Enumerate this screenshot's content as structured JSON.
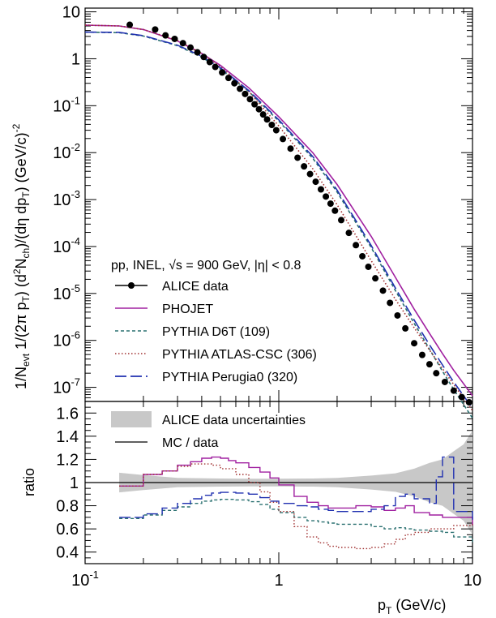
{
  "chart_data": [
    {
      "type": "line",
      "panel": "spectrum",
      "ylabel": "1/N_evt 1/(2π p_T) (d²N_ch)/(dη dp_T) (GeV/c)^-2",
      "yscale": "log",
      "xscale": "log",
      "xlim": [
        0.1,
        10
      ],
      "ylim": [
        5e-08,
        12
      ],
      "y_tick_labels": [
        "10^-7",
        "10^-6",
        "10^-5",
        "10^-4",
        "10^-3",
        "10^-2",
        "10^-1",
        "1",
        "10"
      ],
      "annotation": "pp, INEL, √s = 900 GeV, |η| < 0.8",
      "series": [
        {
          "name": "ALICE data",
          "style": "markers",
          "color": "#000000",
          "x": [
            0.17,
            0.23,
            0.26,
            0.29,
            0.32,
            0.35,
            0.38,
            0.41,
            0.44,
            0.47,
            0.51,
            0.55,
            0.59,
            0.63,
            0.67,
            0.71,
            0.75,
            0.79,
            0.83,
            0.87,
            0.92,
            0.97,
            1.05,
            1.15,
            1.25,
            1.35,
            1.45,
            1.55,
            1.65,
            1.75,
            1.85,
            1.95,
            2.1,
            2.3,
            2.5,
            2.7,
            2.9,
            3.15,
            3.45,
            3.75,
            4.1,
            4.5,
            5.0,
            5.5,
            6.0,
            6.5,
            7.2,
            8.0,
            8.8,
            9.6
          ],
          "y": [
            5.3,
            4.2,
            3.15,
            2.65,
            2.15,
            1.73,
            1.37,
            1.09,
            0.85,
            0.67,
            0.51,
            0.39,
            0.3,
            0.23,
            0.178,
            0.138,
            0.107,
            0.084,
            0.065,
            0.051,
            0.039,
            0.03,
            0.0195,
            0.0122,
            0.0078,
            0.0051,
            0.0035,
            0.0024,
            0.00165,
            0.00116,
            0.00082,
            0.00058,
            0.000365,
            0.000195,
            0.000107,
            6.2e-05,
            3.7e-05,
            2.1e-05,
            1.15e-05,
            6.3e-06,
            3.4e-06,
            1.8e-06,
            8.7e-07,
            4.9e-07,
            3.1e-07,
            2e-07,
            1.3e-07,
            8.5e-08,
            6.2e-08,
            4.8e-08
          ]
        },
        {
          "name": "PHOJET",
          "style": "solid",
          "color": "#a020a0",
          "x": [
            0.1,
            0.15,
            0.2,
            0.3,
            0.4,
            0.5,
            0.7,
            1.0,
            1.5,
            2.0,
            3.0,
            4.0,
            5.0,
            6.0,
            7.0,
            8.0,
            10.0
          ],
          "y": [
            5.2,
            5.0,
            4.2,
            2.4,
            1.3,
            0.72,
            0.24,
            0.058,
            0.0099,
            0.0021,
            0.000165,
            2.2e-05,
            4.6e-06,
            1.4e-06,
            5.2e-07,
            2.3e-07,
            6.6e-08
          ]
        },
        {
          "name": "PYTHIA D6T (109)",
          "style": "dashed-short",
          "color": "#2a7070",
          "x": [
            0.1,
            0.15,
            0.2,
            0.3,
            0.4,
            0.5,
            0.7,
            1.0,
            1.5,
            2.0,
            3.0,
            4.0,
            5.0,
            6.0,
            7.0,
            8.0,
            10.0
          ],
          "y": [
            3.7,
            3.6,
            3.05,
            1.9,
            1.08,
            0.6,
            0.2,
            0.047,
            0.0075,
            0.00145,
            9.5e-05,
            1.15e-05,
            2.3e-06,
            6.5e-07,
            2.2e-07,
            9e-08,
            2.2e-08
          ]
        },
        {
          "name": "PYTHIA ATLAS-CSC (306)",
          "style": "dotted",
          "color": "#a03030",
          "x": [
            0.1,
            0.15,
            0.2,
            0.3,
            0.4,
            0.5,
            0.7,
            1.0,
            1.5,
            2.0,
            3.0,
            4.0,
            5.0,
            6.0,
            7.0,
            8.0,
            10.0
          ],
          "y": [
            5.2,
            5.0,
            4.2,
            2.45,
            1.3,
            0.68,
            0.2,
            0.037,
            0.0045,
            0.00078,
            5e-05,
            7.5e-06,
            1.85e-06,
            6.2e-07,
            2.5e-07,
            1.15e-07,
            3.2e-08
          ]
        },
        {
          "name": "PYTHIA Perugia0 (320)",
          "style": "dashed-long",
          "color": "#2030b0",
          "x": [
            0.1,
            0.15,
            0.2,
            0.3,
            0.4,
            0.5,
            0.7,
            1.0,
            1.5,
            2.0,
            3.0,
            4.0,
            5.0,
            6.0,
            7.0,
            8.0,
            10.0
          ],
          "y": [
            3.7,
            3.65,
            3.1,
            1.95,
            1.13,
            0.64,
            0.21,
            0.05,
            0.0082,
            0.0016,
            0.000105,
            1.3e-05,
            2.7e-06,
            8e-07,
            3e-07,
            1.3e-07,
            3.6e-08
          ]
        }
      ]
    },
    {
      "type": "line",
      "panel": "ratio",
      "xlabel": "p_T (GeV/c)",
      "ylabel": "ratio",
      "xscale": "log",
      "xlim": [
        0.1,
        10
      ],
      "ylim": [
        0.3,
        1.7
      ],
      "x_tick_labels": [
        "10^-1",
        "1",
        "10"
      ],
      "y_tick_labels": [
        "0.4",
        "0.6",
        "0.8",
        "1",
        "1.2",
        "1.4",
        "1.6"
      ],
      "band": {
        "name": "ALICE data uncertainties",
        "color": "#c8c8c8",
        "x": [
          0.15,
          0.2,
          0.3,
          0.5,
          0.7,
          1.0,
          1.5,
          2.0,
          3.0,
          4.0,
          5.0,
          6.0,
          7.0,
          8.0,
          9.0,
          10.0
        ],
        "half_width": [
          0.085,
          0.065,
          0.04,
          0.035,
          0.033,
          0.033,
          0.035,
          0.04,
          0.06,
          0.08,
          0.12,
          0.17,
          0.2,
          0.27,
          0.33,
          0.45
        ]
      },
      "reference": {
        "name": "MC / data",
        "y": 1.0
      },
      "series": [
        {
          "name": "PHOJET",
          "style": "solid",
          "color": "#a020a0",
          "x": [
            0.15,
            0.2,
            0.25,
            0.3,
            0.35,
            0.4,
            0.45,
            0.5,
            0.55,
            0.6,
            0.7,
            0.8,
            0.9,
            1.0,
            1.2,
            1.4,
            1.6,
            1.8,
            2.0,
            2.5,
            3.0,
            3.5,
            4.0,
            4.5,
            5.0,
            6.0,
            7.0,
            8.0,
            10.0
          ],
          "y": [
            0.97,
            1.07,
            1.1,
            1.15,
            1.18,
            1.21,
            1.22,
            1.21,
            1.19,
            1.17,
            1.13,
            1.09,
            1.04,
            0.98,
            0.88,
            0.83,
            0.8,
            0.78,
            0.78,
            0.8,
            0.79,
            0.76,
            0.78,
            0.8,
            0.74,
            0.72,
            0.7,
            0.7,
            0.63
          ]
        },
        {
          "name": "PYTHIA D6T (109)",
          "style": "dashed-short",
          "color": "#2a7070",
          "x": [
            0.15,
            0.2,
            0.25,
            0.3,
            0.35,
            0.4,
            0.45,
            0.5,
            0.6,
            0.7,
            0.8,
            0.9,
            1.0,
            1.2,
            1.4,
            1.6,
            1.8,
            2.0,
            2.5,
            3.0,
            3.5,
            4.0,
            4.5,
            5.0,
            6.0,
            7.0,
            8.0,
            10.0
          ],
          "y": [
            0.69,
            0.72,
            0.76,
            0.79,
            0.82,
            0.84,
            0.85,
            0.855,
            0.85,
            0.835,
            0.81,
            0.77,
            0.74,
            0.7,
            0.67,
            0.66,
            0.65,
            0.64,
            0.64,
            0.62,
            0.6,
            0.61,
            0.6,
            0.59,
            0.58,
            0.57,
            0.53,
            0.47
          ]
        },
        {
          "name": "PYTHIA ATLAS-CSC (306)",
          "style": "dotted",
          "color": "#a03030",
          "x": [
            0.15,
            0.2,
            0.25,
            0.3,
            0.35,
            0.4,
            0.45,
            0.5,
            0.6,
            0.7,
            0.8,
            0.9,
            1.0,
            1.2,
            1.4,
            1.6,
            1.8,
            2.0,
            2.5,
            3.0,
            3.5,
            4.0,
            4.5,
            5.0,
            6.0,
            7.0,
            8.0,
            10.0
          ],
          "y": [
            0.97,
            1.07,
            1.1,
            1.14,
            1.16,
            1.16,
            1.15,
            1.12,
            1.07,
            1.0,
            0.92,
            0.83,
            0.75,
            0.62,
            0.53,
            0.48,
            0.45,
            0.44,
            0.43,
            0.44,
            0.47,
            0.51,
            0.55,
            0.57,
            0.6,
            0.6,
            0.63,
            0.65
          ]
        },
        {
          "name": "PYTHIA Perugia0 (320)",
          "style": "dashed-long",
          "color": "#2030b0",
          "x": [
            0.15,
            0.2,
            0.25,
            0.3,
            0.35,
            0.4,
            0.45,
            0.5,
            0.6,
            0.7,
            0.8,
            0.9,
            1.0,
            1.2,
            1.4,
            1.6,
            1.8,
            2.0,
            2.5,
            3.0,
            3.5,
            4.0,
            4.5,
            5.0,
            6.0,
            6.5,
            7.0,
            8.0,
            10.0
          ],
          "y": [
            0.7,
            0.73,
            0.78,
            0.82,
            0.86,
            0.89,
            0.91,
            0.915,
            0.91,
            0.9,
            0.87,
            0.84,
            0.82,
            0.8,
            0.79,
            0.77,
            0.76,
            0.75,
            0.75,
            0.77,
            0.8,
            0.88,
            0.9,
            0.86,
            0.82,
            1.05,
            1.22,
            0.75,
            0.68
          ]
        }
      ]
    }
  ],
  "legend": {
    "spectrum": [
      "ALICE data",
      "PHOJET",
      "PYTHIA D6T (109)",
      "PYTHIA ATLAS-CSC (306)",
      "PYTHIA Perugia0 (320)"
    ],
    "ratio": [
      "ALICE data uncertainties",
      "MC / data"
    ]
  }
}
